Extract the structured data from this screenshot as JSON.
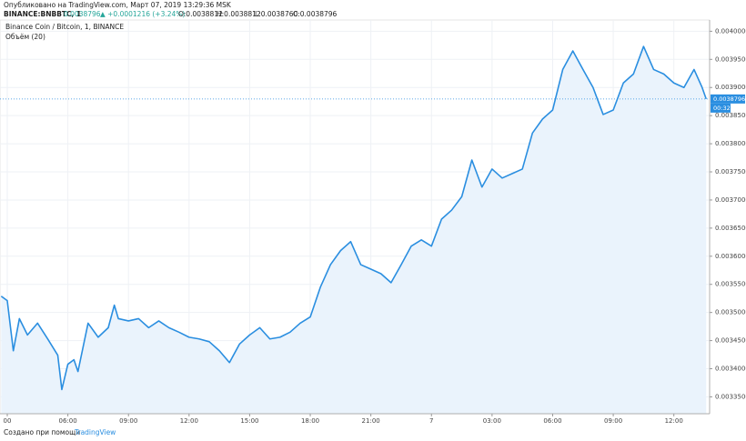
{
  "chart_data": {
    "type": "area",
    "published": "Опубликовано на TradingView.com, Март 07, 2019 13:29:36 MSK",
    "symbol": "BINANCE:BNBBTC, 1",
    "last": "0.0038796",
    "change": "▲ +0.0001216 (+3.24%)",
    "ohlc": [
      "O:0.0038812",
      "H:0.0038812",
      "L:0.0038760",
      "C:0.0038796"
    ],
    "title": "Binance Coin / Bitcoin, 1, BINANCE",
    "indicator": "Объём (20)",
    "price_label": "0.0038796",
    "countdown": "00:32",
    "footer": "Создано при помощи",
    "brand": "TradingView",
    "color": "#2a8ee0",
    "fill": "#eaf3fc",
    "grid": true,
    "x": [
      2.7,
      3.0,
      3.3,
      3.6,
      4.0,
      4.5,
      5.0,
      5.5,
      5.7,
      6.0,
      6.3,
      6.5,
      7.0,
      7.5,
      8.0,
      8.3,
      8.5,
      9.0,
      9.5,
      10.0,
      10.5,
      11.0,
      11.5,
      12.0,
      12.5,
      13.0,
      13.5,
      14.0,
      14.5,
      15.0,
      15.5,
      16.0,
      16.5,
      17.0,
      17.5,
      18.0,
      18.5,
      19.0,
      19.5,
      20.0,
      20.5,
      21.0,
      21.5,
      22.0,
      22.5,
      23.0,
      23.5,
      24.0,
      24.5,
      25.0,
      25.5,
      26.0,
      26.5,
      27.0,
      27.5,
      28.0,
      28.5,
      29.0,
      29.5,
      30.0,
      30.5,
      31.0,
      31.5,
      32.0,
      32.5,
      33.0,
      33.5,
      34.0,
      34.5,
      35.0,
      35.5,
      36.0,
      36.5,
      37.0,
      37.4,
      37.6
    ],
    "values": [
      0.003529,
      0.003521,
      0.003432,
      0.003489,
      0.00346,
      0.003481,
      0.003453,
      0.003424,
      0.003363,
      0.003408,
      0.003416,
      0.003395,
      0.003481,
      0.003456,
      0.003473,
      0.003513,
      0.003489,
      0.003485,
      0.003489,
      0.003473,
      0.003485,
      0.003473,
      0.003465,
      0.003456,
      0.003453,
      0.003448,
      0.003432,
      0.003411,
      0.003444,
      0.00346,
      0.003473,
      0.003453,
      0.003456,
      0.003465,
      0.003481,
      0.003492,
      0.003545,
      0.003585,
      0.00361,
      0.003626,
      0.003585,
      0.003577,
      0.003569,
      0.003553,
      0.003585,
      0.003618,
      0.003629,
      0.003618,
      0.003666,
      0.003682,
      0.003706,
      0.003771,
      0.003723,
      0.003755,
      0.003739,
      0.003747,
      0.003755,
      0.003819,
      0.003844,
      0.00386,
      0.003932,
      0.003965,
      0.003932,
      0.0039,
      0.003852,
      0.00386,
      0.003908,
      0.003924,
      0.003973,
      0.003932,
      0.003924,
      0.003908,
      0.0039,
      0.003932,
      0.0039,
      0.0038796
    ],
    "xlim": [
      2.64,
      37.77
    ],
    "xticks": [
      {
        "value": 3,
        "label": "00"
      },
      {
        "value": 6,
        "label": "06:00"
      },
      {
        "value": 9,
        "label": "09:00"
      },
      {
        "value": 12,
        "label": "12:00"
      },
      {
        "value": 15,
        "label": "15:00"
      },
      {
        "value": 18,
        "label": "18:00"
      },
      {
        "value": 21,
        "label": "21:00"
      },
      {
        "value": 24,
        "label": "7"
      },
      {
        "value": 27,
        "label": "03:00"
      },
      {
        "value": 30,
        "label": "06:00"
      },
      {
        "value": 33,
        "label": "09:00"
      },
      {
        "value": 36,
        "label": "12:00"
      }
    ],
    "ylim": [
      0.00332,
      0.00402
    ],
    "yticks": [
      {
        "value": 0.004,
        "label": "0.0040000"
      },
      {
        "value": 0.00395,
        "label": "0.0039500"
      },
      {
        "value": 0.0039,
        "label": "0.0039000"
      },
      {
        "value": 0.00385,
        "label": "0.0038500"
      },
      {
        "value": 0.0038,
        "label": "0.0038000"
      },
      {
        "value": 0.00375,
        "label": "0.0037500"
      },
      {
        "value": 0.0037,
        "label": "0.0037000"
      },
      {
        "value": 0.00365,
        "label": "0.0036500"
      },
      {
        "value": 0.0036,
        "label": "0.0036000"
      },
      {
        "value": 0.00355,
        "label": "0.0035500"
      },
      {
        "value": 0.0035,
        "label": "0.0035000"
      },
      {
        "value": 0.00345,
        "label": "0.0034500"
      },
      {
        "value": 0.0034,
        "label": "0.0034000"
      },
      {
        "value": 0.00335,
        "label": "0.0033500"
      }
    ]
  }
}
